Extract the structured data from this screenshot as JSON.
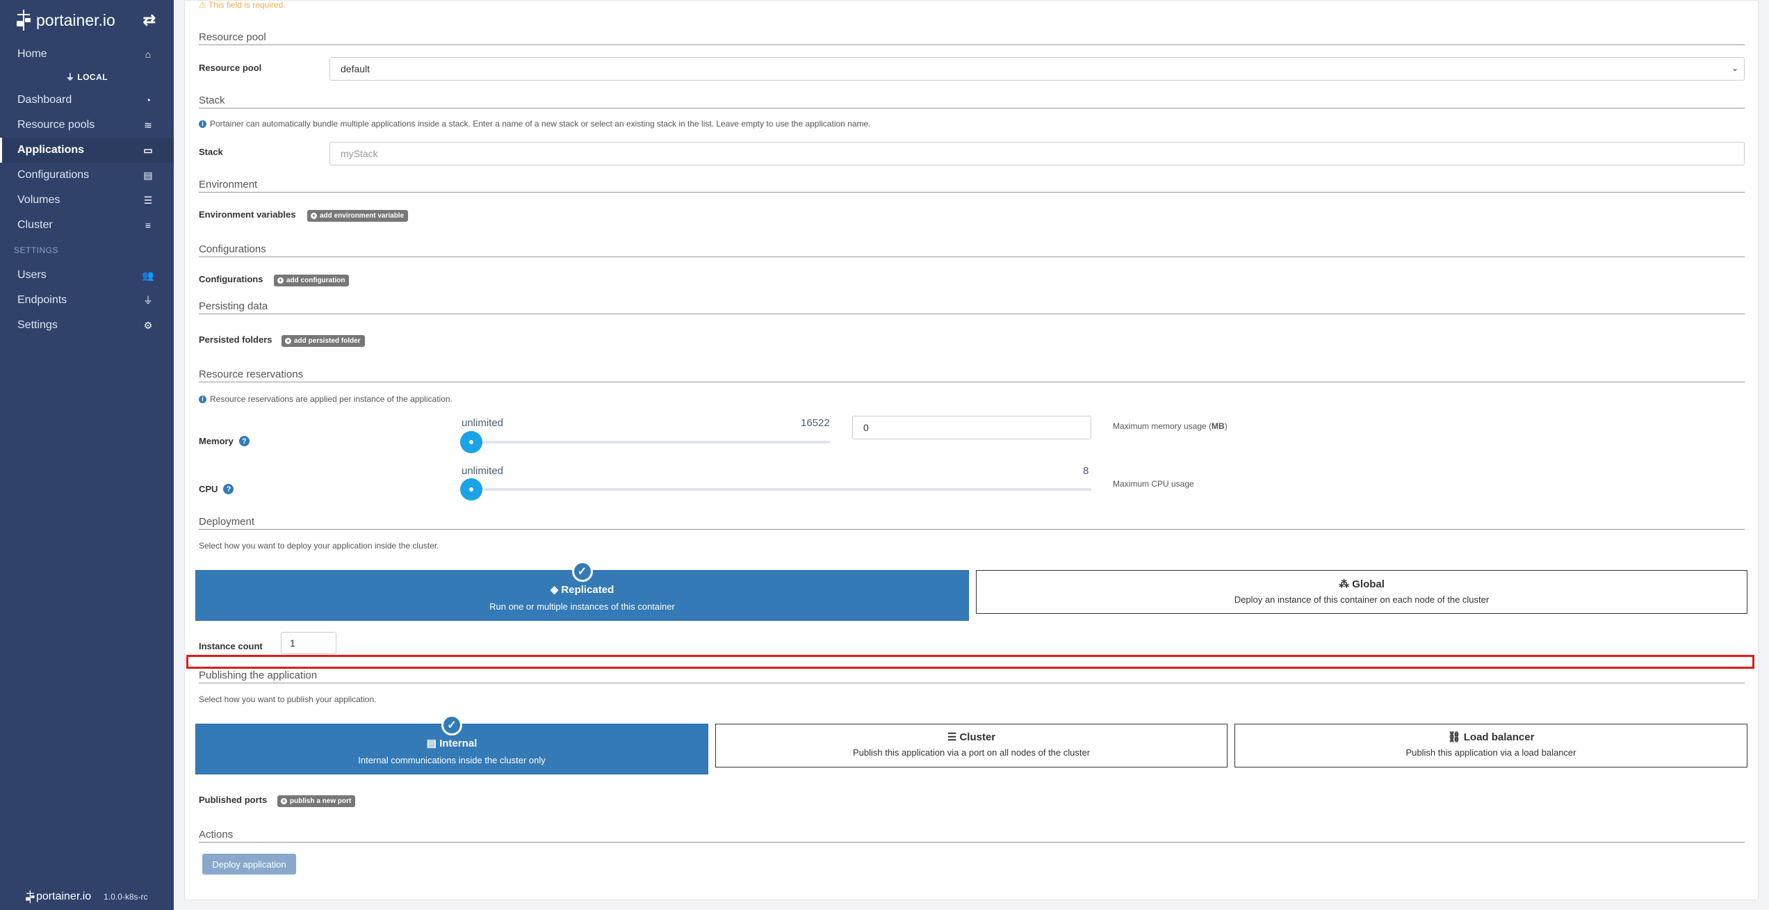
{
  "sidebar": {
    "logo_text": "portainer.io",
    "items_top": [
      {
        "label": "Home",
        "icon": "home-icon"
      }
    ],
    "endpoint_label": "LOCAL",
    "items_endpoint": [
      {
        "label": "Dashboard",
        "icon": "tachometer-icon"
      },
      {
        "label": "Resource pools",
        "icon": "layer-group-icon"
      },
      {
        "label": "Applications",
        "icon": "laptop-code-icon"
      },
      {
        "label": "Configurations",
        "icon": "file-code-icon"
      },
      {
        "label": "Volumes",
        "icon": "database-icon"
      },
      {
        "label": "Cluster",
        "icon": "server-icon"
      }
    ],
    "settings_header": "SETTINGS",
    "items_settings": [
      {
        "label": "Users",
        "icon": "users-icon"
      },
      {
        "label": "Endpoints",
        "icon": "plug-icon"
      },
      {
        "label": "Settings",
        "icon": "cogs-icon"
      }
    ],
    "footer_logo": "portainer.io",
    "version": "1.0.0-k8s-rc"
  },
  "form": {
    "required_warning": "This field is required.",
    "resource_pool": {
      "section": "Resource pool",
      "label": "Resource pool",
      "value": "default"
    },
    "stack": {
      "section": "Stack",
      "help": "Portainer can automatically bundle multiple applications inside a stack. Enter a name of a new stack or select an existing stack in the list. Leave empty to use the application name.",
      "label": "Stack",
      "placeholder": "myStack"
    },
    "environment": {
      "section": "Environment",
      "label": "Environment variables",
      "button": "add environment variable"
    },
    "configurations": {
      "section": "Configurations",
      "label": "Configurations",
      "button": "add configuration"
    },
    "persisting": {
      "section": "Persisting data",
      "label": "Persisted folders",
      "button": "add persisted folder"
    },
    "reservations": {
      "section": "Resource reservations",
      "help": "Resource reservations are applied per instance of the application.",
      "memory": {
        "label": "Memory",
        "min_label": "unlimited",
        "max_label": "16522",
        "value": 0,
        "input_value": "0",
        "hint_pre": "Maximum memory usage (",
        "hint_unit": "MB",
        "hint_post": ")"
      },
      "cpu": {
        "label": "CPU",
        "min_label": "unlimited",
        "max_label": "8",
        "value": 0,
        "hint": "Maximum CPU usage"
      }
    },
    "deployment": {
      "section": "Deployment",
      "help": "Select how you want to deploy your application inside the cluster.",
      "options": [
        {
          "title": "Replicated",
          "desc": "Run one or multiple instances of this container",
          "selected": true,
          "icon": "cube-icon"
        },
        {
          "title": "Global",
          "desc": "Deploy an instance of this container on each node of the cluster",
          "selected": false,
          "icon": "cubes-icon"
        }
      ],
      "instance_label": "Instance count",
      "instance_value": "1"
    },
    "publishing": {
      "section": "Publishing the application",
      "help": "Select how you want to publish your application.",
      "options": [
        {
          "title": "Internal",
          "desc": "Internal communications inside the cluster only",
          "selected": true,
          "icon": "list-alt-icon"
        },
        {
          "title": "Cluster",
          "desc": "Publish this application via a port on all nodes of the cluster",
          "selected": false,
          "icon": "list-icon"
        },
        {
          "title": "Load balancer",
          "desc": "Publish this application via a load balancer",
          "selected": false,
          "icon": "project-diagram-icon"
        }
      ],
      "ports_label": "Published ports",
      "ports_button": "publish a new port"
    },
    "actions": {
      "section": "Actions",
      "deploy_button": "Deploy application"
    }
  }
}
